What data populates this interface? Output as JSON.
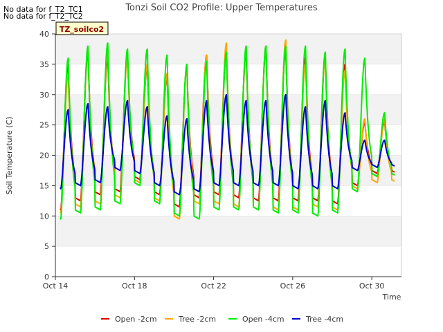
{
  "chart_data": {
    "type": "line",
    "title": "Tonzi Soil CO2 Profile: Upper Temperatures",
    "xlabel": "Time",
    "ylabel": "Soil Temperature (C)",
    "xlim": [
      0,
      17.5
    ],
    "ylim": [
      0,
      40
    ],
    "x_ticks": [
      {
        "x": 0,
        "label": "Oct 14"
      },
      {
        "x": 4,
        "label": "Oct 18"
      },
      {
        "x": 8,
        "label": "Oct 22"
      },
      {
        "x": 12,
        "label": "Oct 26"
      },
      {
        "x": 16,
        "label": "Oct 30"
      }
    ],
    "y_ticks": [
      0,
      5,
      10,
      15,
      20,
      25,
      30,
      35,
      40
    ],
    "x_start_label": "Oct 14",
    "site_label": "TZ_soilco2",
    "no_data_notes": [
      "No data for f_T2_TC1",
      "No data for f_T2_TC2"
    ],
    "legend_position": "bottom-center",
    "grid": false,
    "bands": true,
    "series": [
      {
        "name": "Open -2cm",
        "color": "#dd0000",
        "daily_peaks": [
          35.0,
          37.0,
          36.0,
          36.5,
          34.5,
          33.0,
          34.5,
          36.5,
          37.0,
          37.0,
          37.5,
          37.5,
          36.0,
          36.5,
          35.0,
          25.5
        ],
        "daily_mins": [
          11.0,
          12.5,
          13.5,
          14.0,
          16.0,
          13.5,
          11.5,
          13.0,
          13.5,
          13.0,
          12.5,
          12.5,
          12.5,
          12.5,
          12.0,
          15.0,
          17.0
        ]
      },
      {
        "name": "Tree -2cm",
        "color": "#ffa500",
        "daily_peaks": [
          33.5,
          37.5,
          37.0,
          36.0,
          35.0,
          33.5,
          34.5,
          36.5,
          38.5,
          37.5,
          38.0,
          39.0,
          35.0,
          36.0,
          34.0,
          26.0
        ],
        "daily_mins": [
          10.5,
          11.5,
          12.0,
          13.0,
          15.5,
          12.5,
          9.5,
          12.0,
          12.0,
          11.5,
          11.0,
          11.0,
          11.0,
          11.5,
          11.0,
          14.5,
          15.5
        ]
      },
      {
        "name": "Open -4cm",
        "color": "#00ee00",
        "daily_peaks": [
          36.0,
          38.0,
          38.5,
          37.5,
          37.5,
          36.5,
          35.0,
          35.5,
          37.0,
          38.0,
          38.0,
          38.0,
          38.0,
          37.0,
          37.5,
          36.0,
          27.0
        ],
        "daily_mins": [
          9.5,
          10.5,
          11.0,
          12.0,
          15.0,
          12.0,
          10.0,
          9.5,
          11.0,
          11.0,
          11.0,
          10.5,
          10.5,
          10.0,
          10.5,
          14.0,
          16.5
        ]
      },
      {
        "name": "Tree -4cm",
        "color": "#0000cc",
        "daily_peaks": [
          27.5,
          28.5,
          28.0,
          29.0,
          28.0,
          26.5,
          26.0,
          29.0,
          30.0,
          29.0,
          29.0,
          30.0,
          28.0,
          29.0,
          27.0,
          22.5
        ],
        "daily_mins": [
          14.5,
          15.0,
          15.5,
          17.5,
          17.0,
          15.0,
          13.5,
          14.0,
          15.0,
          15.0,
          15.0,
          15.0,
          14.5,
          14.5,
          14.5,
          17.5,
          18.0
        ]
      }
    ]
  }
}
